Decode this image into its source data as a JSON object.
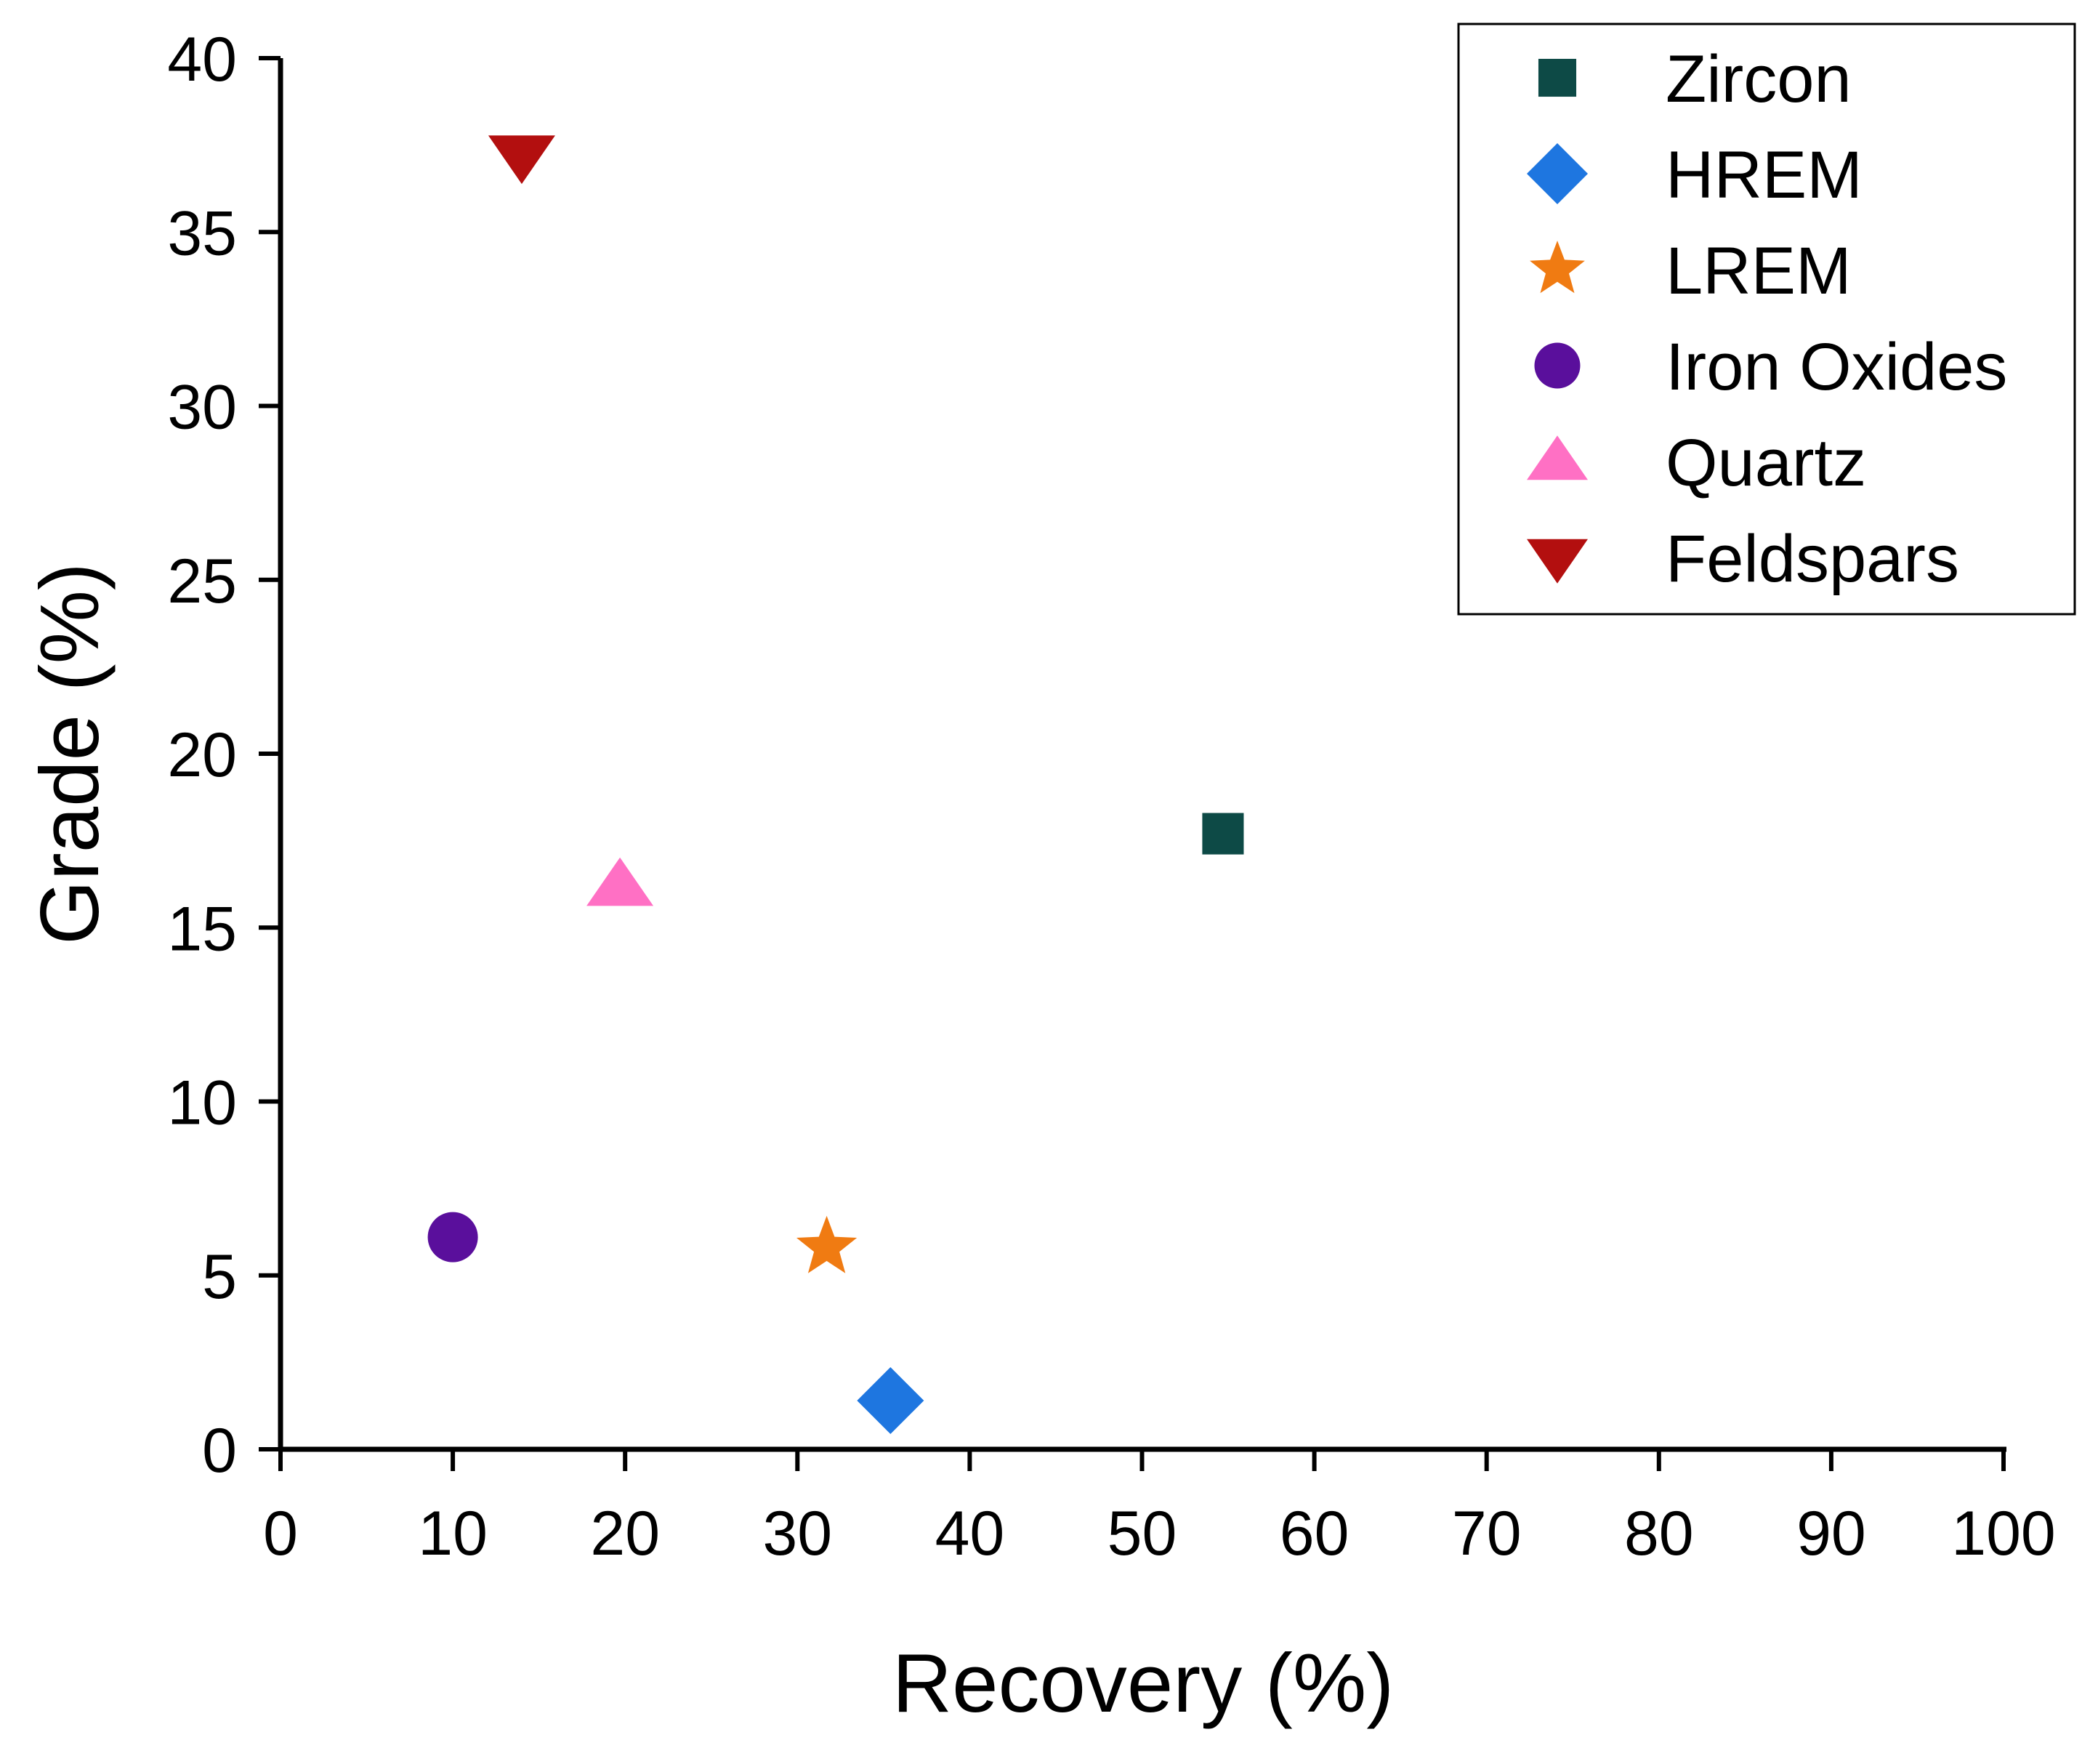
{
  "chart_data": {
    "type": "scatter",
    "title": "",
    "xlabel": "Recovery (%)",
    "ylabel": "Grade (%)",
    "xlim": [
      0,
      100
    ],
    "ylim": [
      0,
      40
    ],
    "xticks": [
      "0",
      "10",
      "20",
      "30",
      "40",
      "50",
      "60",
      "70",
      "80",
      "90",
      "100"
    ],
    "yticks": [
      "0",
      "5",
      "10",
      "15",
      "20",
      "25",
      "30",
      "35",
      "40"
    ],
    "grid": false,
    "legend_position": "top-right",
    "series": [
      {
        "name": "Zircon",
        "marker": "square",
        "color": "#0d4a46",
        "x": 54.7,
        "y": 17.7
      },
      {
        "name": "HREM",
        "marker": "diamond",
        "color": "#1e76e0",
        "x": 35.4,
        "y": 1.4
      },
      {
        "name": "LREM",
        "marker": "star",
        "color": "#f07b12",
        "x": 31.7,
        "y": 5.8
      },
      {
        "name": "Iron Oxides",
        "marker": "circle",
        "color": "#5a0f9c",
        "x": 10.0,
        "y": 6.1
      },
      {
        "name": "Quartz",
        "marker": "triangle-up",
        "color": "#ff70c4",
        "x": 19.7,
        "y": 16.2
      },
      {
        "name": "Feldspars",
        "marker": "triangle-down",
        "color": "#b30f0f",
        "x": 14.0,
        "y": 37.2
      }
    ]
  }
}
